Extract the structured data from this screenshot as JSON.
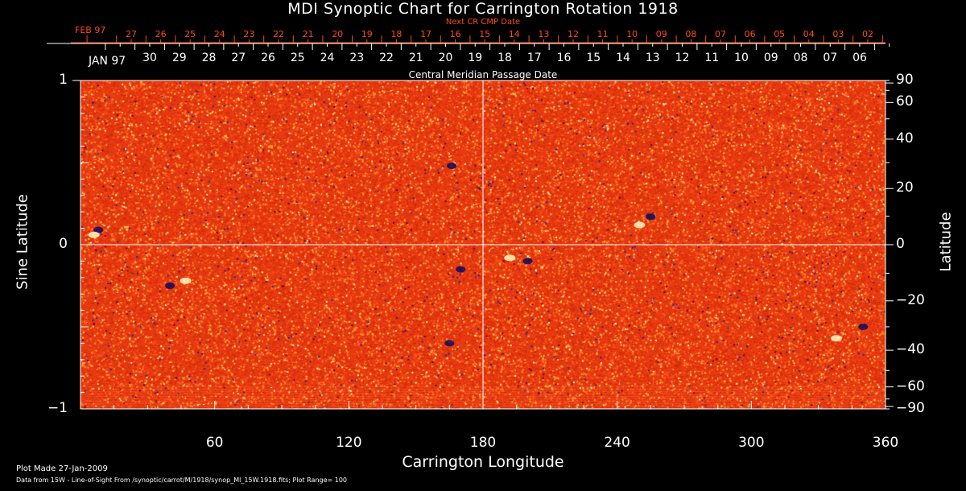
{
  "chart_data": {
    "type": "heatmap",
    "title": "MDI Synoptic Chart for Carrington Rotation 1918",
    "xlabel": "Carrington Longitude",
    "ylabel_left": "Sine Latitude",
    "ylabel_right": "Latitude",
    "xlim": [
      0,
      360
    ],
    "ylim": [
      -1,
      1
    ],
    "x_ticks": [
      "60",
      "120",
      "180",
      "240",
      "300",
      "360"
    ],
    "x_tick_values": [
      60,
      120,
      180,
      240,
      300,
      360
    ],
    "y_ticks_left": [
      "1",
      "0",
      "−1"
    ],
    "y_tick_values_left": [
      1,
      0,
      -1
    ],
    "y_ticks_right": [
      "90",
      "60",
      "40",
      "20",
      "0",
      "−20",
      "−40",
      "−60",
      "−90"
    ],
    "y_tick_values_right": [
      90,
      60,
      40,
      20,
      0,
      -20,
      -40,
      -60,
      -90
    ],
    "top_axis_red_title": "Next CR CMP Date",
    "top_axis_red_month": "FEB 97",
    "top_axis_red_labels": [
      "27",
      "26",
      "25",
      "24",
      "23",
      "22",
      "21",
      "20",
      "19",
      "18",
      "17",
      "16",
      "15",
      "14",
      "13",
      "12",
      "11",
      "10",
      "09",
      "08",
      "07",
      "06",
      "05",
      "04",
      "03",
      "02"
    ],
    "top_axis_white_title": "Central Meridian Passage Date",
    "top_axis_white_month": "JAN 97",
    "top_axis_white_labels": [
      "30",
      "29",
      "28",
      "27",
      "26",
      "25",
      "24",
      "23",
      "22",
      "21",
      "20",
      "19",
      "18",
      "17",
      "16",
      "15",
      "14",
      "13",
      "12",
      "11",
      "10",
      "09",
      "08",
      "07",
      "06"
    ],
    "grid": "crosshair at longitude 180 and sine latitude 0",
    "features": [
      {
        "lon": 8,
        "sinlat": 0.09,
        "polarity": "negative"
      },
      {
        "lon": 6,
        "sinlat": 0.06,
        "polarity": "positive"
      },
      {
        "lon": 40,
        "sinlat": -0.25,
        "polarity": "negative"
      },
      {
        "lon": 47,
        "sinlat": -0.22,
        "polarity": "positive"
      },
      {
        "lon": 200,
        "sinlat": -0.1,
        "polarity": "negative"
      },
      {
        "lon": 192,
        "sinlat": -0.08,
        "polarity": "positive"
      },
      {
        "lon": 255,
        "sinlat": 0.17,
        "polarity": "negative"
      },
      {
        "lon": 250,
        "sinlat": 0.12,
        "polarity": "positive"
      },
      {
        "lon": 350,
        "sinlat": -0.5,
        "polarity": "negative"
      },
      {
        "lon": 338,
        "sinlat": -0.57,
        "polarity": "positive"
      },
      {
        "lon": 165,
        "sinlat": -0.6,
        "polarity": "negative"
      },
      {
        "lon": 170,
        "sinlat": -0.15,
        "polarity": "negative"
      },
      {
        "lon": 166,
        "sinlat": 0.48,
        "polarity": "negative"
      }
    ]
  },
  "footer": {
    "plot_made": "Plot Made 27-Jan-2009",
    "data_source": "Data from 15W - Line-of-Sight From /synoptic/carrot/M/1918/synop_Ml_15W.1918.fits; Plot Range=  100"
  },
  "colors": {
    "positive": "#fff8c0",
    "negative": "#0a0a60",
    "background": "#e83a10",
    "red_axis": "#ff4a10"
  }
}
